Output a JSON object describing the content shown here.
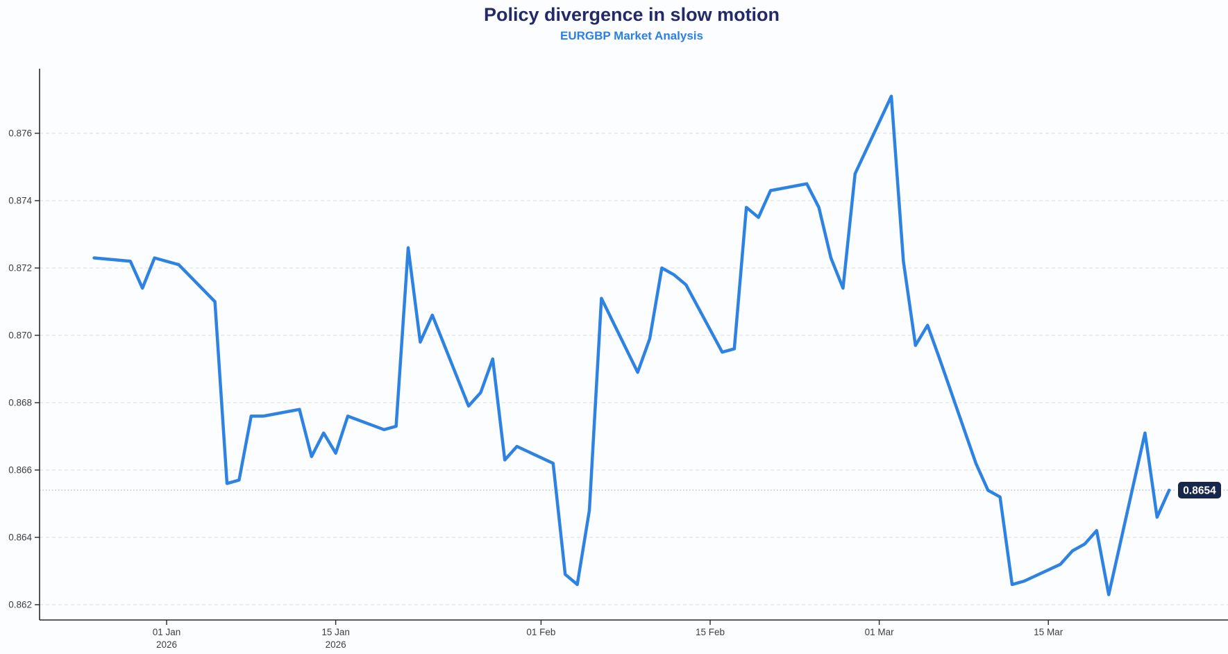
{
  "chart_data": {
    "type": "line",
    "title": "Policy divergence in slow motion",
    "subtitle": "EURGBP Market Analysis",
    "xlabel": "",
    "ylabel": "",
    "ylim": [
      0.8616,
      0.8779
    ],
    "yticks": [
      0.862,
      0.864,
      0.866,
      0.868,
      0.87,
      0.872,
      0.874,
      0.876
    ],
    "xticks": [
      {
        "date": "2026-01-01",
        "label": "01 Jan",
        "sublabel": "2026"
      },
      {
        "date": "2026-01-15",
        "label": "15 Jan",
        "sublabel": "2026"
      },
      {
        "date": "2026-02-01",
        "label": "01 Feb",
        "sublabel": ""
      },
      {
        "date": "2026-02-15",
        "label": "15 Feb",
        "sublabel": ""
      },
      {
        "date": "2026-03-01",
        "label": "01 Mar",
        "sublabel": ""
      },
      {
        "date": "2026-03-15",
        "label": "15 Mar",
        "sublabel": ""
      }
    ],
    "grid": true,
    "legend_position": "none",
    "series": [
      {
        "name": "EURGBP",
        "x": [
          "2025-12-26",
          "2025-12-29",
          "2025-12-30",
          "2025-12-31",
          "2026-01-02",
          "2026-01-05",
          "2026-01-06",
          "2026-01-07",
          "2026-01-08",
          "2026-01-09",
          "2026-01-12",
          "2026-01-13",
          "2026-01-14",
          "2026-01-15",
          "2026-01-16",
          "2026-01-19",
          "2026-01-20",
          "2026-01-21",
          "2026-01-22",
          "2026-01-23",
          "2026-01-26",
          "2026-01-27",
          "2026-01-28",
          "2026-01-29",
          "2026-01-30",
          "2026-02-02",
          "2026-02-03",
          "2026-02-04",
          "2026-02-05",
          "2026-02-06",
          "2026-02-09",
          "2026-02-10",
          "2026-02-11",
          "2026-02-12",
          "2026-02-13",
          "2026-02-16",
          "2026-02-17",
          "2026-02-18",
          "2026-02-19",
          "2026-02-20",
          "2026-02-23",
          "2026-02-24",
          "2026-02-25",
          "2026-02-26",
          "2026-02-27",
          "2026-03-02",
          "2026-03-03",
          "2026-03-04",
          "2026-03-05",
          "2026-03-06",
          "2026-03-09",
          "2026-03-10",
          "2026-03-11",
          "2026-03-12",
          "2026-03-13",
          "2026-03-16",
          "2026-03-17",
          "2026-03-18",
          "2026-03-19",
          "2026-03-20",
          "2026-03-23",
          "2026-03-24",
          "2026-03-25"
        ],
        "values": [
          0.8723,
          0.8722,
          0.8714,
          0.8723,
          0.8721,
          0.871,
          0.8656,
          0.8657,
          0.8676,
          0.8676,
          0.8678,
          0.8664,
          0.8671,
          0.8665,
          0.8676,
          0.8672,
          0.8673,
          0.8726,
          0.8698,
          0.8706,
          0.8679,
          0.8683,
          0.8693,
          0.8663,
          0.8667,
          0.8662,
          0.8629,
          0.8626,
          0.8648,
          0.8711,
          0.8689,
          0.8699,
          0.872,
          0.8718,
          0.8715,
          0.8695,
          0.8696,
          0.8738,
          0.8735,
          0.8743,
          0.8745,
          0.8738,
          0.8723,
          0.8714,
          0.8748,
          0.8771,
          0.8722,
          0.8697,
          0.8703,
          0.8693,
          0.8662,
          0.8654,
          0.8652,
          0.8626,
          0.8627,
          0.8632,
          0.8636,
          0.8638,
          0.8642,
          0.8623,
          0.8671,
          0.8646,
          0.8654
        ]
      }
    ],
    "last_value_annotation": {
      "text": "0.8654",
      "value": 0.8654
    }
  },
  "colors": {
    "background": "#fcfdff",
    "title": "#232a67",
    "subtitle": "#2a80e4",
    "line": "#2d82e2",
    "grid": "#d9dce1",
    "annotation_line": "#b7bcc6",
    "axis": "#26272b",
    "tick_text": "#3c3d40",
    "label_bg": "#17264b",
    "label_border": "#ffffff",
    "label_text": "#ffffff"
  }
}
